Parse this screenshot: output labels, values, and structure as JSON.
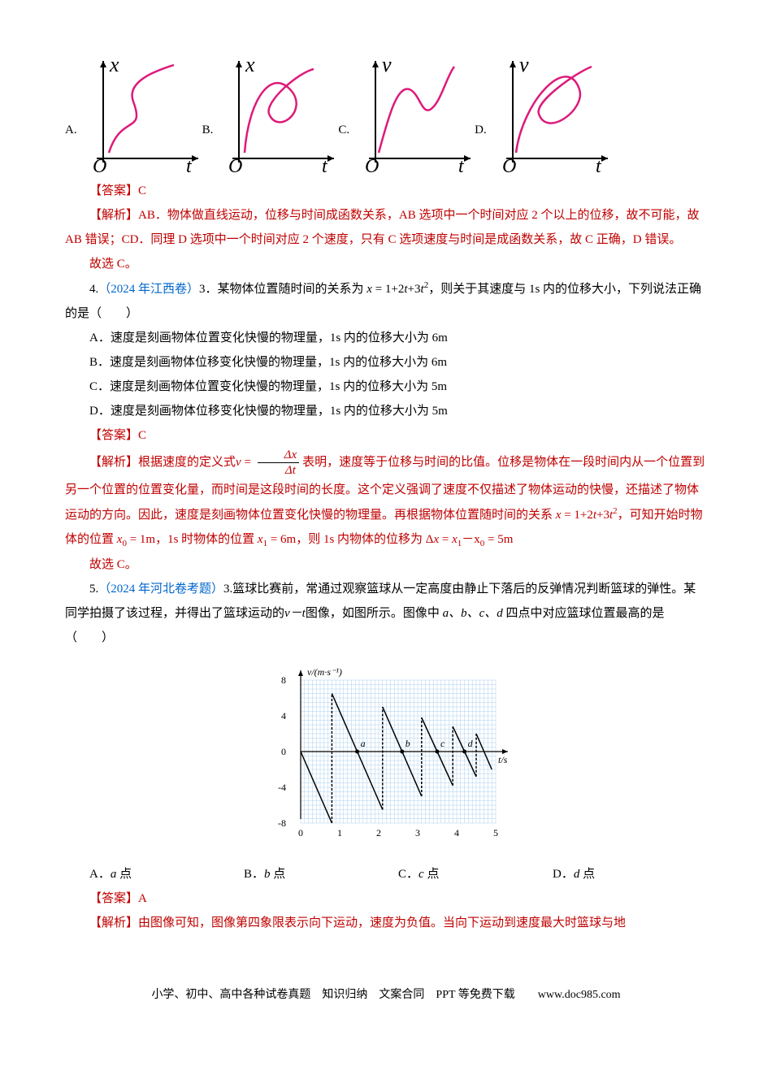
{
  "q3": {
    "options": [
      "A.",
      "B.",
      "C.",
      "D."
    ],
    "graphs": {
      "stroke": "#dd1a7a",
      "axis_color": "#000000",
      "italic_font": "Times New Roman"
    },
    "answer_label": "【答案】",
    "answer": "C",
    "analysis_label": "【解析】",
    "analysis": "AB．物体做直线运动，位移与时间成函数关系，AB 选项中一个时间对应 2 个以上的位移，故不可能，故 AB 错误；CD．同理 D 选项中一个时间对应 2 个速度，只有 C 选项速度与时间是成函数关系，故 C 正确，D 错误。",
    "conclusion": "故选 C。"
  },
  "q4": {
    "number": "4.",
    "source": "（2024 年江西卷）",
    "subnum": "3．",
    "stem_a": "某物体位置随时间的关系为 ",
    "formula": "x = 1+2t+3t",
    "formula_sup": "2",
    "stem_b": "，则关于其速度与 1s 内的位移大小，下列说法正确的是（　　）",
    "opts": {
      "A": "A．速度是刻画物体位置变化快慢的物理量，1s 内的位移大小为 6m",
      "B": "B．速度是刻画物体位移变化快慢的物理量，1s 内的位移大小为 6m",
      "C": "C．速度是刻画物体位置变化快慢的物理量，1s 内的位移大小为 5m",
      "D": "D．速度是刻画物体位移变化快慢的物理量，1s 内的位移大小为 5m"
    },
    "answer_label": "【答案】",
    "answer": "C",
    "analysis_label": "【解析】",
    "analysis_a": "根据速度的定义式",
    "frac_num": "Δx",
    "frac_den": "Δt",
    "analysis_b": "表明，速度等于位移与时间的比值。位移是物体在一段时间内从一个位置到另一个位置的位置变化量，而时间是这段时间的长度。这个定义强调了速度不仅描述了物体运动的快慢，还描述了物体运动的方向。因此，速度是刻画物体位置变化快慢的物理量。再根据物体位置随时间的关系 ",
    "rel": "x = 1+2t+3t",
    "rel_sup": "2",
    "analysis_c": "，可知开始时物体的位置 ",
    "x0": "x",
    "x0sub": "0",
    "x0val": " = 1m，1s 时物体的位置 ",
    "x1": "x",
    "x1sub": "1",
    "x1val": " = 6m，则 1s 内物体的位移为 Δ",
    "dx": "x = x",
    "dx1": "1",
    "dxm": "－x",
    "dx0": "0",
    "dxv": " = 5m",
    "conclusion": "故选 C。"
  },
  "q5": {
    "number": "5.",
    "source": "（2024 年河北卷考题）",
    "subnum": "3.",
    "stem_a": "篮球比赛前，常通过观察篮球从一定高度由静止下落后的反弹情况判断篮球的弹性。某同学拍摄了该过程，并得出了篮球运动的",
    "vt": "v－t",
    "stem_b": "图像，如图所示。图像中 ",
    "abcd": "a、b、c、d",
    "stem_c": " 四点中对应篮球位置最高的是（　　）",
    "graph": {
      "ylabel": "v/(m·s⁻¹)",
      "xlabel": "t/s",
      "y_ticks": [
        -8,
        -4,
        0,
        4,
        8
      ],
      "x_ticks": [
        0,
        1,
        2,
        3,
        4,
        5
      ],
      "grid_color": "#a9cff0",
      "curve_color": "#000000",
      "series": [
        {
          "start_t": 0,
          "start_v": 0,
          "end_t": 0.8,
          "end_v": -8
        },
        {
          "start_t": 0.8,
          "start_v": 6.5,
          "end_t": 1.45,
          "end_v": 0,
          "label": "a"
        },
        {
          "start_t": 1.45,
          "start_v": 0,
          "end_t": 2.1,
          "end_v": -6.5
        },
        {
          "start_t": 2.1,
          "start_v": 5,
          "end_t": 2.6,
          "end_v": 0,
          "label": "b"
        },
        {
          "start_t": 2.6,
          "start_v": 0,
          "end_t": 3.1,
          "end_v": -5
        },
        {
          "start_t": 3.1,
          "start_v": 3.8,
          "end_t": 3.5,
          "end_v": 0,
          "label": "c"
        },
        {
          "start_t": 3.5,
          "start_v": 0,
          "end_t": 3.9,
          "end_v": -3.8
        },
        {
          "start_t": 3.9,
          "start_v": 2.8,
          "end_t": 4.2,
          "end_v": 0,
          "label": "d"
        },
        {
          "start_t": 4.2,
          "start_v": 0,
          "end_t": 4.5,
          "end_v": -2.8
        },
        {
          "start_t": 4.5,
          "start_v": 2,
          "end_t": 4.7,
          "end_v": 0
        },
        {
          "start_t": 4.7,
          "start_v": 0,
          "end_t": 4.9,
          "end_v": -2
        }
      ]
    },
    "opts": {
      "A": "A．a 点",
      "B": "B．b 点",
      "C": "C．c 点",
      "D": "D．d 点"
    },
    "answer_label": "【答案】",
    "answer": "A",
    "analysis_label": "【解析】",
    "analysis": "由图像可知，图像第四象限表示向下运动，速度为负值。当向下运动到速度最大时篮球与地"
  },
  "footer": "小学、初中、高中各种试卷真题　知识归纳　文案合同　PPT 等免费下载　　www.doc985.com"
}
